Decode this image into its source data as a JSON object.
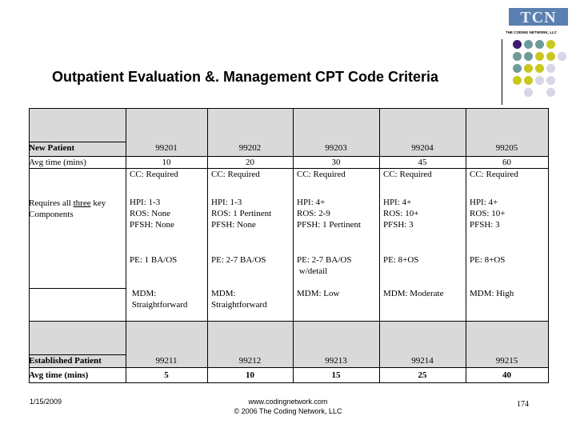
{
  "title": "Outpatient Evaluation &. Management CPT Code Criteria",
  "logo": {
    "text": "TCN",
    "subtitle": "THE CODING NETWORK, LLC"
  },
  "colors": {
    "header_fill": "#d9d9d9",
    "dot_purple": "#3d1a6e",
    "dot_teal": "#6e9a9a",
    "dot_olive": "#c8c81e",
    "dot_lavender": "#d6d6e6"
  },
  "new_patient": {
    "label": "New Patient",
    "codes": [
      "99201",
      "99202",
      "99203",
      "99204",
      "99205"
    ],
    "avg_label": "Avg time (mins)",
    "avg": [
      "10",
      "20",
      "30",
      "45",
      "60"
    ],
    "components_label_pre": "Requires all ",
    "components_label_u": "three",
    "components_label_post": " key\nComponents",
    "cc": [
      "CC: Required",
      "CC: Required",
      "CC: Required",
      "CC: Required",
      "CC: Required"
    ],
    "hpi": [
      "HPI: 1-3\nROS: None\nPFSH: None",
      "HPI: 1-3\nROS: 1 Pertinent\nPFSH: None",
      "HPI: 4+\nROS: 2-9\nPFSH: 1 Pertinent",
      "HPI: 4+\nROS: 10+\nPFSH: 3",
      "HPI: 4+\nROS: 10+\nPFSH: 3"
    ],
    "pe": [
      "PE: 1 BA/OS",
      "PE: 2-7 BA/OS",
      "PE: 2-7 BA/OS\n w/detail",
      "PE: 8+OS",
      "PE: 8+OS"
    ],
    "mdm": [
      " MDM:\n Straightforward",
      "MDM:\nStraightforward",
      "MDM: Low",
      "MDM: Moderate",
      "MDM: High"
    ]
  },
  "established_patient": {
    "label": "Established Patient",
    "codes": [
      "99211",
      "99212",
      "99213",
      "99214",
      "99215"
    ],
    "avg_label": "Avg time (mins)",
    "avg": [
      "5",
      "10",
      "15",
      "25",
      "40"
    ]
  },
  "footer": {
    "date": "1/15/2009",
    "url": "www.codingnetwork.com",
    "copyright": "© 2006 The Coding Network, LLC",
    "page": "174"
  }
}
